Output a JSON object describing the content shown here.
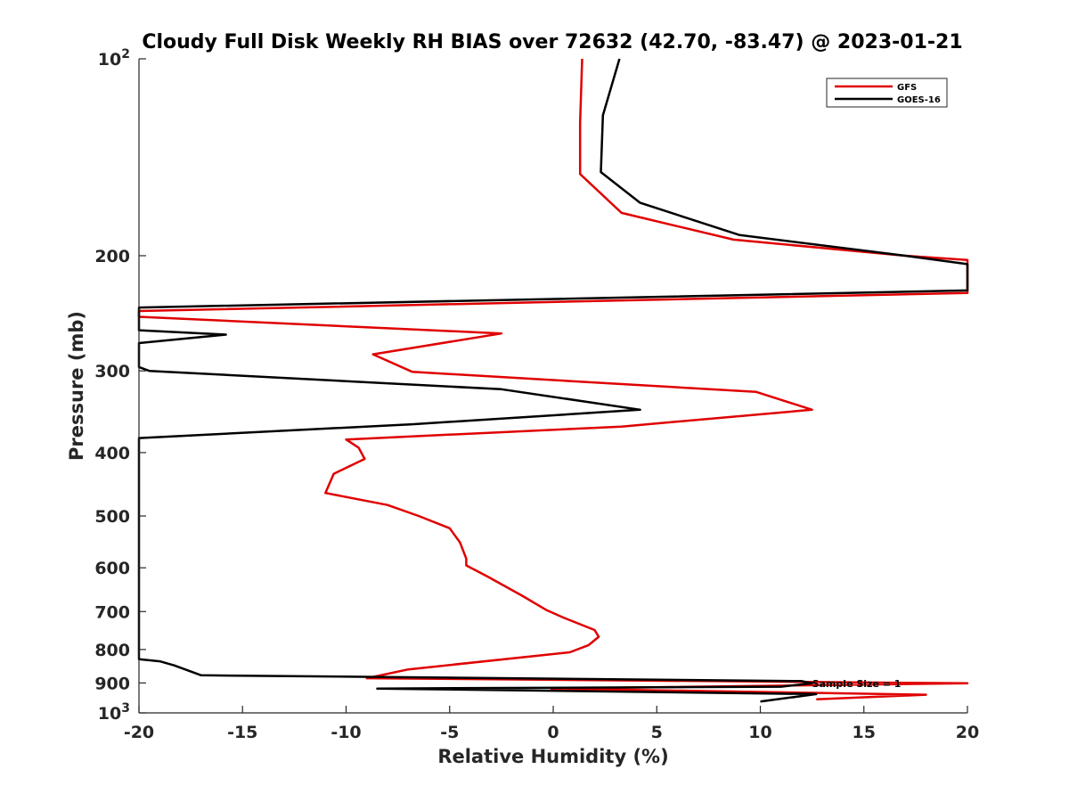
{
  "chart_data": {
    "type": "line",
    "title": "Cloudy Full Disk Weekly RH BIAS over 72632 (42.70, -83.47) @ 2023-01-21",
    "xlabel": "Relative Humidity (%)",
    "ylabel": "Pressure (mb)",
    "xlim": [
      -20,
      20
    ],
    "ylim": [
      100,
      1000
    ],
    "y_scale": "log",
    "y_reversed": true,
    "x_ticks": [
      "-20",
      "-15",
      "-10",
      "-5",
      "0",
      "5",
      "10",
      "15",
      "20"
    ],
    "y_ticks": [
      {
        "value": 100,
        "base": "10",
        "exp": "2"
      },
      {
        "value": 200,
        "label": "200"
      },
      {
        "value": 300,
        "label": "300"
      },
      {
        "value": 400,
        "label": "400"
      },
      {
        "value": 500,
        "label": "500"
      },
      {
        "value": 600,
        "label": "600"
      },
      {
        "value": 700,
        "label": "700"
      },
      {
        "value": 800,
        "label": "800"
      },
      {
        "value": 900,
        "label": "900"
      },
      {
        "value": 1000,
        "base": "10",
        "exp": "3"
      }
    ],
    "grid": false,
    "legend_position": "top-right",
    "annotation": {
      "text": "Sample Size = 1",
      "x": 12.5,
      "y": 902
    },
    "series": [
      {
        "name": "GFS",
        "color": "#e00000",
        "points": [
          [
            1.4,
            100
          ],
          [
            1.3,
            125
          ],
          [
            1.3,
            150
          ],
          [
            3.3,
            172
          ],
          [
            8.7,
            189
          ],
          [
            17.0,
            200
          ],
          [
            20.0,
            203
          ],
          [
            20.0,
            228
          ],
          [
            -20.0,
            243
          ],
          [
            -20.0,
            248
          ],
          [
            -2.5,
            263
          ],
          [
            -8.7,
            283
          ],
          [
            -6.8,
            301
          ],
          [
            9.8,
            323
          ],
          [
            12.5,
            344
          ],
          [
            3.3,
            365
          ],
          [
            -10.0,
            382
          ],
          [
            -9.4,
            393
          ],
          [
            -9.1,
            409
          ],
          [
            -10.6,
            431
          ],
          [
            -11.0,
            461
          ],
          [
            -8.0,
            481
          ],
          [
            -6.5,
            500
          ],
          [
            -5.0,
            522
          ],
          [
            -4.5,
            549
          ],
          [
            -4.2,
            581
          ],
          [
            -4.2,
            595
          ],
          [
            -3.2,
            618
          ],
          [
            -1.5,
            662
          ],
          [
            -0.3,
            697
          ],
          [
            0.5,
            715
          ],
          [
            2.0,
            747
          ],
          [
            2.2,
            765
          ],
          [
            1.7,
            788
          ],
          [
            0.8,
            808
          ],
          [
            -7.0,
            858
          ],
          [
            -9.0,
            885
          ],
          [
            20.0,
            901
          ],
          [
            -0.1,
            918
          ],
          [
            18.0,
            938
          ],
          [
            12.7,
            953
          ]
        ]
      },
      {
        "name": "GOES-16",
        "color": "#000000",
        "points": [
          [
            3.2,
            100
          ],
          [
            2.4,
            122
          ],
          [
            2.3,
            149
          ],
          [
            4.2,
            166
          ],
          [
            9.0,
            186
          ],
          [
            17.0,
            200
          ],
          [
            20.0,
            206
          ],
          [
            20.0,
            226
          ],
          [
            -20.0,
            240
          ],
          [
            -20.0,
            260
          ],
          [
            -15.8,
            264
          ],
          [
            -20.0,
            272
          ],
          [
            -20.0,
            296
          ],
          [
            -19.5,
            300
          ],
          [
            -2.5,
            320
          ],
          [
            4.2,
            344
          ],
          [
            -6.8,
            362
          ],
          [
            -20.0,
            380
          ],
          [
            -20.0,
            828
          ],
          [
            -19.0,
            834
          ],
          [
            -18.3,
            846
          ],
          [
            -17.0,
            876
          ],
          [
            12.0,
            894
          ],
          [
            12.5,
            901
          ],
          [
            11.0,
            912
          ],
          [
            -8.5,
            918
          ],
          [
            12.7,
            936
          ],
          [
            10.0,
            961
          ]
        ]
      }
    ]
  }
}
